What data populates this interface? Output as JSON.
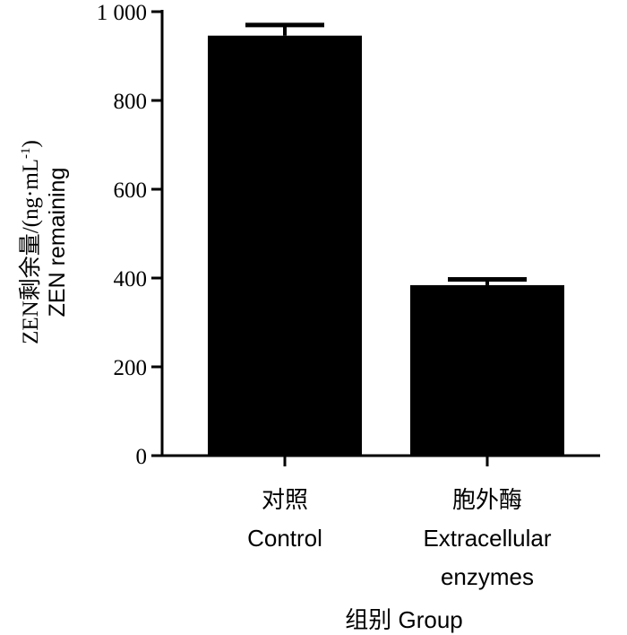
{
  "chart_data": {
    "type": "bar",
    "categories": [
      {
        "line1": "对照",
        "line2": "Control",
        "line3": ""
      },
      {
        "line1": "胞外酶",
        "line2": "Extracellular",
        "line3": "enzymes"
      }
    ],
    "series": [
      {
        "values": [
          946,
          384
        ],
        "errors": [
          24,
          13
        ],
        "color": "#000000"
      }
    ],
    "ylim": [
      0,
      1000
    ],
    "yticks": [
      0,
      200,
      400,
      600,
      800,
      1000
    ],
    "ytick_labels": [
      "0",
      "200",
      "400",
      "600",
      "800",
      "1 000"
    ],
    "ylabel_line1": "ZEN剩余量/(ng·mL",
    "ylabel_superscript": "-1",
    "ylabel_line1_close": ")",
    "ylabel_line2": "ZEN remaining",
    "xlabel": "组别  Group",
    "grid": false
  }
}
